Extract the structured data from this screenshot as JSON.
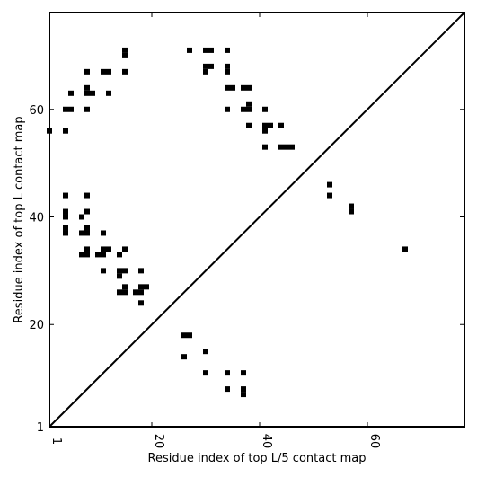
{
  "chart_data": {
    "type": "scatter",
    "title": "",
    "xlabel": "Residue index of top L/5 contact map",
    "ylabel": "Residue index of top L contact map",
    "xlim": [
      1,
      78
    ],
    "ylim": [
      1,
      78
    ],
    "xticks": [
      1,
      20,
      40,
      60
    ],
    "yticks": [
      1,
      20,
      40,
      60
    ],
    "xtick_labels": [
      "1",
      "20",
      "40",
      "60"
    ],
    "ytick_labels": [
      "1",
      "20",
      "40",
      "60"
    ],
    "marker": "square",
    "marker_color": "#000000",
    "diagonal_line": true,
    "grid": false,
    "points": [
      [
        1,
        56
      ],
      [
        4,
        60
      ],
      [
        5,
        60
      ],
      [
        4,
        56
      ],
      [
        5,
        63
      ],
      [
        8,
        60
      ],
      [
        8,
        63
      ],
      [
        8,
        64
      ],
      [
        9,
        63
      ],
      [
        8,
        67
      ],
      [
        11,
        67
      ],
      [
        12,
        67
      ],
      [
        12,
        63
      ],
      [
        15,
        67
      ],
      [
        15,
        70
      ],
      [
        15,
        71
      ],
      [
        27,
        71
      ],
      [
        30,
        71
      ],
      [
        31,
        71
      ],
      [
        30,
        67
      ],
      [
        30,
        68
      ],
      [
        31,
        68
      ],
      [
        34,
        71
      ],
      [
        34,
        68
      ],
      [
        34,
        67
      ],
      [
        34,
        64
      ],
      [
        35,
        64
      ],
      [
        37,
        64
      ],
      [
        38,
        64
      ],
      [
        34,
        60
      ],
      [
        37,
        60
      ],
      [
        38,
        60
      ],
      [
        38,
        61
      ],
      [
        38,
        57
      ],
      [
        41,
        60
      ],
      [
        41,
        57
      ],
      [
        41,
        56
      ],
      [
        42,
        57
      ],
      [
        41,
        53
      ],
      [
        44,
        57
      ],
      [
        44,
        53
      ],
      [
        45,
        53
      ],
      [
        46,
        53
      ],
      [
        53,
        46
      ],
      [
        53,
        44
      ],
      [
        57,
        42
      ],
      [
        57,
        41
      ],
      [
        67,
        34
      ],
      [
        4,
        44
      ],
      [
        4,
        41
      ],
      [
        4,
        40
      ],
      [
        4,
        38
      ],
      [
        4,
        37
      ],
      [
        7,
        40
      ],
      [
        8,
        44
      ],
      [
        8,
        41
      ],
      [
        8,
        38
      ],
      [
        8,
        37
      ],
      [
        7,
        37
      ],
      [
        7,
        33
      ],
      [
        8,
        33
      ],
      [
        8,
        34
      ],
      [
        10,
        33
      ],
      [
        11,
        33
      ],
      [
        11,
        34
      ],
      [
        12,
        34
      ],
      [
        11,
        37
      ],
      [
        11,
        30
      ],
      [
        14,
        30
      ],
      [
        14,
        29
      ],
      [
        15,
        30
      ],
      [
        14,
        33
      ],
      [
        15,
        34
      ],
      [
        14,
        26
      ],
      [
        15,
        26
      ],
      [
        15,
        27
      ],
      [
        17,
        26
      ],
      [
        18,
        26
      ],
      [
        18,
        27
      ],
      [
        19,
        27
      ],
      [
        18,
        30
      ],
      [
        18,
        24
      ],
      [
        26,
        18
      ],
      [
        27,
        18
      ],
      [
        26,
        14
      ],
      [
        30,
        15
      ],
      [
        30,
        11
      ],
      [
        34,
        11
      ],
      [
        37,
        11
      ],
      [
        34,
        8
      ],
      [
        37,
        8
      ],
      [
        37,
        7
      ]
    ]
  }
}
